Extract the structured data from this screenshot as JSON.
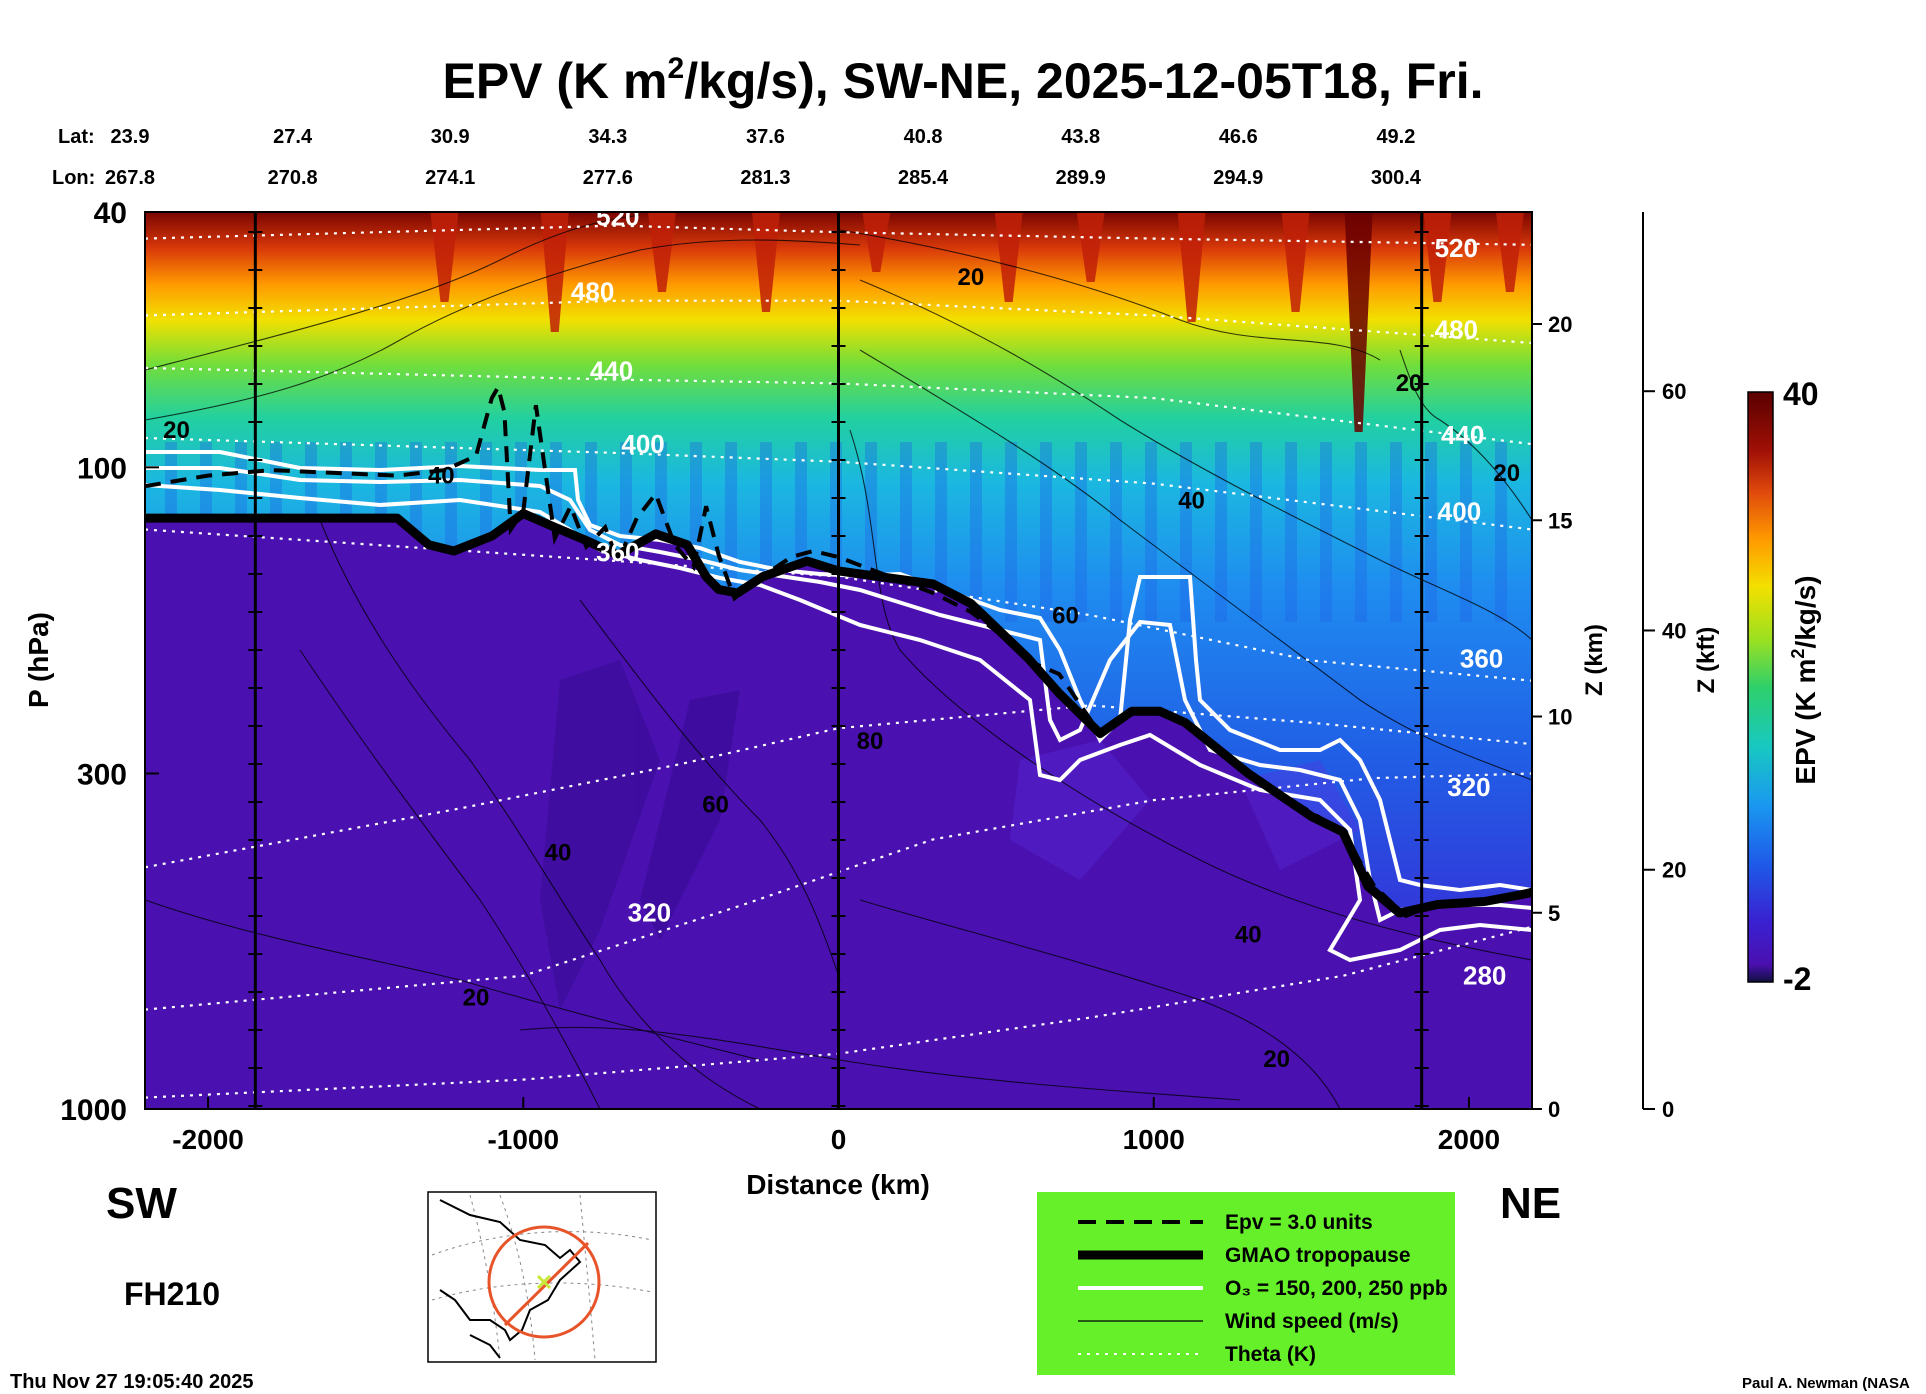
{
  "chart_data": {
    "type": "heatmap",
    "title": "EPV (K m²/kg/s), SW-NE, 2025-12-05T18, Fri.",
    "title_main": "EPV (K m",
    "title_sup": "2",
    "title_rest": "/kg/s), SW-NE, 2025-12-05T18, Fri.",
    "xlabel": "Distance (km)",
    "ylabel": "P (hPa)",
    "z_km_label": "Z (km)",
    "z_kft_label": "Z (kft)",
    "colorbar_label": "EPV (K m²/kg/s)",
    "colorbar_label_main": "EPV (K m",
    "colorbar_label_sup": "2",
    "colorbar_label_rest": "/kg/s)",
    "colorbar_range": [
      -2,
      40
    ],
    "colorbar_ticks": [
      "40",
      "-2"
    ],
    "xlim": [
      -2200,
      2200
    ],
    "x_ticks": [
      "-2000",
      "-1000",
      "0",
      "1000",
      "2000"
    ],
    "x_tick_values": [
      -2000,
      -1000,
      0,
      1000,
      2000
    ],
    "ylim_hpa": [
      1000,
      40
    ],
    "y_ticks": [
      "40",
      "100",
      "300",
      "1000"
    ],
    "y_tick_values": [
      40,
      100,
      300,
      1000
    ],
    "z_km_ticks": [
      "20",
      "15",
      "10",
      "5",
      "0"
    ],
    "z_km_values": [
      20,
      15,
      10,
      5,
      0
    ],
    "z_kft_ticks": [
      "60",
      "40",
      "20",
      "0"
    ],
    "z_kft_values": [
      60,
      40,
      20,
      0
    ],
    "lat_label": "Lat:",
    "lon_label": "Lon:",
    "lat": [
      "23.9",
      "27.4",
      "30.9",
      "34.3",
      "37.6",
      "40.8",
      "43.8",
      "46.6",
      "49.2"
    ],
    "lon": [
      "267.8",
      "270.8",
      "274.1",
      "277.6",
      "281.3",
      "285.4",
      "289.9",
      "294.9",
      "300.4"
    ],
    "lat_lon_distance_km": [
      -2200,
      -1700,
      -1200,
      -700,
      -200,
      300,
      800,
      1300,
      1800
    ],
    "vertical_lines_km": [
      -1850,
      0,
      1850
    ],
    "theta_labels": [
      {
        "text": "520",
        "x": -700,
        "p": 42
      },
      {
        "text": "480",
        "x": -780,
        "p": 55
      },
      {
        "text": "440",
        "x": -720,
        "p": 73
      },
      {
        "text": "400",
        "x": -620,
        "p": 95
      },
      {
        "text": "360",
        "x": -700,
        "p": 140
      },
      {
        "text": "320",
        "x": -600,
        "p": 510
      },
      {
        "text": "520",
        "x": 1960,
        "p": 47
      },
      {
        "text": "480",
        "x": 1960,
        "p": 63
      },
      {
        "text": "440",
        "x": 1980,
        "p": 92
      },
      {
        "text": "400",
        "x": 1970,
        "p": 121
      },
      {
        "text": "360",
        "x": 2040,
        "p": 205
      },
      {
        "text": "320",
        "x": 2000,
        "p": 325
      },
      {
        "text": "280",
        "x": 2050,
        "p": 640
      }
    ],
    "wind_labels": [
      {
        "text": "20",
        "x": -2100,
        "p": 90
      },
      {
        "text": "40",
        "x": -1260,
        "p": 106
      },
      {
        "text": "20",
        "x": 420,
        "p": 52
      },
      {
        "text": "40",
        "x": 1120,
        "p": 116
      },
      {
        "text": "60",
        "x": 720,
        "p": 175
      },
      {
        "text": "80",
        "x": 100,
        "p": 275
      },
      {
        "text": "60",
        "x": -390,
        "p": 345
      },
      {
        "text": "40",
        "x": -890,
        "p": 410
      },
      {
        "text": "20",
        "x": -1150,
        "p": 690
      },
      {
        "text": "40",
        "x": 1300,
        "p": 550
      },
      {
        "text": "20",
        "x": 1390,
        "p": 860
      },
      {
        "text": "20",
        "x": 1810,
        "p": 76
      },
      {
        "text": "20",
        "x": 2120,
        "p": 105
      }
    ],
    "series": [
      {
        "name": "GMAO tropopause",
        "x": [
          -2200,
          -1400,
          -1300,
          -1220,
          -1100,
          -1000,
          -900,
          -800,
          -700,
          -580,
          -480,
          -420,
          -380,
          -320,
          -240,
          -100,
          0,
          300,
          420,
          600,
          700,
          830,
          930,
          1020,
          1100,
          1300,
          1500,
          1600,
          1680,
          1780,
          1900,
          2050,
          2200
        ],
        "p": [
          120,
          120,
          132,
          135,
          128,
          118,
          124,
          130,
          137,
          127,
          132,
          148,
          155,
          157,
          148,
          140,
          145,
          152,
          163,
          198,
          225,
          260,
          240,
          240,
          250,
          300,
          350,
          370,
          450,
          495,
          480,
          475,
          460
        ]
      },
      {
        "name": "Epv = 3.0 units",
        "x": [
          -2200,
          -2000,
          -1800,
          -1600,
          -1400,
          -1250,
          -1150,
          -1100,
          -1080,
          -1060,
          -1040,
          -1000,
          -960,
          -900,
          -850,
          -800,
          -740,
          -700,
          -640,
          -580,
          -520,
          -460,
          -420,
          -380,
          -330,
          -260,
          -150,
          -80,
          0,
          300,
          420,
          500,
          600,
          700,
          830,
          930,
          1020,
          1100,
          1300,
          1500,
          1600,
          1700,
          1800,
          1900,
          2100,
          2200
        ],
        "p": [
          107,
          103,
          101,
          102,
          103,
          101,
          96,
          78,
          75,
          82,
          125,
          117,
          80,
          129,
          115,
          133,
          124,
          140,
          120,
          110,
          132,
          143,
          115,
          137,
          160,
          150,
          138,
          135,
          138,
          157,
          168,
          180,
          200,
          210,
          260,
          240,
          240,
          250,
          300,
          345,
          370,
          450,
          500,
          480,
          470,
          455
        ]
      }
    ],
    "legend": [
      {
        "label": "Epv = 3.0 units",
        "style": "dashed"
      },
      {
        "label": "GMAO tropopause",
        "style": "thick"
      },
      {
        "label": "O₃ = 150, 200, 250 ppb",
        "style": "double-white"
      },
      {
        "label": "Wind speed (m/s)",
        "style": "thin"
      },
      {
        "label": "Theta (K)",
        "style": "dotted-white"
      }
    ],
    "legend_placement": "bottom-right",
    "colors": {
      "plot_purple": "#4a10b0",
      "legend_bg": "#66f02a",
      "map_circle": "#e8542a",
      "map_marker": "#c8e83a"
    }
  },
  "labels": {
    "sw": "SW",
    "ne": "NE",
    "forecast_hour": "FH210",
    "timestamp": "Thu Nov 27 19:05:40 2025",
    "credit": "Paul A. Newman (NASA"
  }
}
